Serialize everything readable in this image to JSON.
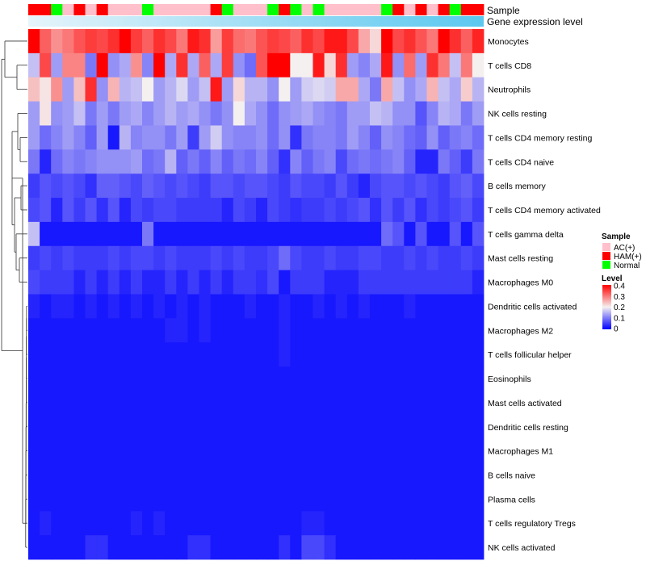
{
  "chart_data": {
    "type": "heatmap",
    "title": "",
    "xlabel": "",
    "ylabel": "",
    "annotations": {
      "sample_label": "Sample",
      "expression_label": "Gene expression level",
      "sample_groups": [
        "AC(+)",
        "HAM(+)",
        "Normal"
      ],
      "sample_colors": {
        "AC(+)": "#ffc0cb",
        "HAM(+)": "#ff0000",
        "Normal": "#00ff00"
      },
      "samples": [
        "HAM(+)",
        "HAM(+)",
        "Normal",
        "AC(+)",
        "HAM(+)",
        "AC(+)",
        "HAM(+)",
        "AC(+)",
        "AC(+)",
        "AC(+)",
        "Normal",
        "AC(+)",
        "AC(+)",
        "AC(+)",
        "AC(+)",
        "AC(+)",
        "HAM(+)",
        "Normal",
        "AC(+)",
        "AC(+)",
        "AC(+)",
        "Normal",
        "HAM(+)",
        "Normal",
        "AC(+)",
        "Normal",
        "AC(+)",
        "AC(+)",
        "AC(+)",
        "AC(+)",
        "AC(+)",
        "Normal",
        "HAM(+)",
        "AC(+)",
        "HAM(+)",
        "AC(+)",
        "HAM(+)",
        "Normal",
        "HAM(+)",
        "HAM(+)"
      ],
      "expression_gradient": [
        "#e6f4fb",
        "#5bc8ef"
      ]
    },
    "rows": [
      "Monocytes",
      "T cells CD8",
      "Neutrophils",
      "NK cells resting",
      "T cells CD4 memory resting",
      "T cells CD4 naive",
      "B cells memory",
      "T cells CD4 memory activated",
      "T cells gamma delta",
      "Mast cells resting",
      "Macrophages M0",
      "Dendritic cells activated",
      "Macrophages M2",
      "T cells follicular helper",
      "Eosinophils",
      "Mast cells activated",
      "Dendritic cells resting",
      "Macrophages M1",
      "B cells naive",
      "Plasma cells",
      "T cells regulatory  Tregs",
      "NK cells activated"
    ],
    "values": [
      [
        0.4,
        0.32,
        0.28,
        0.3,
        0.33,
        0.35,
        0.34,
        0.36,
        0.4,
        0.35,
        0.32,
        0.36,
        0.34,
        0.3,
        0.38,
        0.36,
        0.27,
        0.35,
        0.31,
        0.3,
        0.33,
        0.35,
        0.34,
        0.32,
        0.36,
        0.34,
        0.38,
        0.38,
        0.34,
        0.26,
        0.22,
        0.4,
        0.34,
        0.36,
        0.33,
        0.3,
        0.4,
        0.36,
        0.32,
        0.37
      ],
      [
        0.16,
        0.34,
        0.13,
        0.29,
        0.29,
        0.1,
        0.4,
        0.12,
        0.14,
        0.28,
        0.11,
        0.4,
        0.14,
        0.36,
        0.14,
        0.32,
        0.14,
        0.35,
        0.12,
        0.09,
        0.33,
        0.4,
        0.4,
        0.2,
        0.2,
        0.38,
        0.22,
        0.36,
        0.13,
        0.11,
        0.14,
        0.38,
        0.12,
        0.31,
        0.13,
        0.36,
        0.3,
        0.16,
        0.3,
        0.2
      ],
      [
        0.24,
        0.21,
        0.28,
        0.13,
        0.24,
        0.36,
        0.12,
        0.25,
        0.15,
        0.16,
        0.2,
        0.13,
        0.15,
        0.18,
        0.13,
        0.16,
        0.38,
        0.13,
        0.22,
        0.15,
        0.15,
        0.12,
        0.2,
        0.13,
        0.17,
        0.18,
        0.17,
        0.26,
        0.26,
        0.14,
        0.1,
        0.26,
        0.16,
        0.12,
        0.14,
        0.25,
        0.16,
        0.14,
        0.23,
        0.15
      ],
      [
        0.13,
        0.21,
        0.12,
        0.13,
        0.16,
        0.1,
        0.13,
        0.1,
        0.13,
        0.14,
        0.11,
        0.13,
        0.15,
        0.13,
        0.14,
        0.12,
        0.1,
        0.12,
        0.2,
        0.14,
        0.12,
        0.09,
        0.12,
        0.13,
        0.14,
        0.12,
        0.11,
        0.1,
        0.13,
        0.13,
        0.16,
        0.15,
        0.12,
        0.12,
        0.07,
        0.11,
        0.15,
        0.14,
        0.1,
        0.13
      ],
      [
        0.13,
        0.09,
        0.11,
        0.13,
        0.11,
        0.08,
        0.13,
        0.02,
        0.15,
        0.11,
        0.12,
        0.12,
        0.1,
        0.13,
        0.05,
        0.13,
        0.17,
        0.12,
        0.11,
        0.11,
        0.12,
        0.09,
        0.12,
        0.04,
        0.1,
        0.11,
        0.11,
        0.1,
        0.13,
        0.11,
        0.08,
        0.12,
        0.11,
        0.09,
        0.08,
        0.12,
        0.08,
        0.1,
        0.11,
        0.09
      ],
      [
        0.1,
        0.03,
        0.09,
        0.11,
        0.1,
        0.11,
        0.12,
        0.12,
        0.12,
        0.13,
        0.09,
        0.1,
        0.15,
        0.08,
        0.1,
        0.08,
        0.11,
        0.08,
        0.1,
        0.09,
        0.11,
        0.08,
        0.04,
        0.11,
        0.08,
        0.1,
        0.11,
        0.06,
        0.09,
        0.1,
        0.09,
        0.1,
        0.11,
        0.08,
        0.03,
        0.03,
        0.1,
        0.08,
        0.05,
        0.1
      ],
      [
        0.05,
        0.07,
        0.06,
        0.07,
        0.06,
        0.04,
        0.08,
        0.08,
        0.07,
        0.06,
        0.08,
        0.07,
        0.06,
        0.07,
        0.06,
        0.05,
        0.07,
        0.07,
        0.06,
        0.07,
        0.07,
        0.06,
        0.05,
        0.07,
        0.06,
        0.06,
        0.05,
        0.07,
        0.05,
        0.03,
        0.06,
        0.07,
        0.07,
        0.06,
        0.07,
        0.06,
        0.05,
        0.07,
        0.08,
        0.06
      ],
      [
        0.06,
        0.07,
        0.03,
        0.07,
        0.05,
        0.07,
        0.04,
        0.07,
        0.03,
        0.06,
        0.05,
        0.06,
        0.06,
        0.05,
        0.05,
        0.05,
        0.05,
        0.03,
        0.06,
        0.05,
        0.03,
        0.06,
        0.05,
        0.04,
        0.05,
        0.05,
        0.06,
        0.05,
        0.06,
        0.07,
        0.04,
        0.07,
        0.05,
        0.07,
        0.04,
        0.06,
        0.05,
        0.06,
        0.07,
        0.05
      ],
      [
        0.16,
        0.02,
        0.02,
        0.02,
        0.02,
        0.02,
        0.02,
        0.02,
        0.02,
        0.02,
        0.1,
        0.02,
        0.02,
        0.02,
        0.02,
        0.02,
        0.02,
        0.02,
        0.02,
        0.02,
        0.02,
        0.02,
        0.02,
        0.02,
        0.02,
        0.02,
        0.02,
        0.02,
        0.02,
        0.02,
        0.02,
        0.09,
        0.07,
        0.02,
        0.07,
        0.02,
        0.02,
        0.07,
        0.02,
        0.07
      ],
      [
        0.05,
        0.06,
        0.05,
        0.06,
        0.05,
        0.05,
        0.05,
        0.06,
        0.05,
        0.06,
        0.06,
        0.05,
        0.06,
        0.05,
        0.05,
        0.05,
        0.06,
        0.05,
        0.06,
        0.05,
        0.05,
        0.06,
        0.09,
        0.06,
        0.05,
        0.05,
        0.06,
        0.05,
        0.05,
        0.06,
        0.06,
        0.05,
        0.05,
        0.06,
        0.05,
        0.06,
        0.05,
        0.05,
        0.06,
        0.05
      ],
      [
        0.06,
        0.05,
        0.05,
        0.05,
        0.03,
        0.05,
        0.03,
        0.05,
        0.03,
        0.05,
        0.03,
        0.03,
        0.05,
        0.03,
        0.05,
        0.03,
        0.05,
        0.03,
        0.05,
        0.05,
        0.04,
        0.06,
        0.02,
        0.05,
        0.05,
        0.05,
        0.03,
        0.03,
        0.03,
        0.05,
        0.05,
        0.05,
        0.05,
        0.05,
        0.05,
        0.05,
        0.05,
        0.05,
        0.05,
        0.03
      ],
      [
        0.03,
        0.02,
        0.03,
        0.03,
        0.02,
        0.03,
        0.02,
        0.03,
        0.02,
        0.03,
        0.02,
        0.03,
        0.02,
        0.03,
        0.02,
        0.03,
        0.02,
        0.02,
        0.02,
        0.03,
        0.02,
        0.02,
        0.03,
        0.02,
        0.02,
        0.03,
        0.02,
        0.03,
        0.02,
        0.03,
        0.02,
        0.02,
        0.02,
        0.03,
        0.02,
        0.02,
        0.02,
        0.02,
        0.02,
        0.02
      ],
      [
        0.02,
        0.02,
        0.02,
        0.02,
        0.02,
        0.02,
        0.02,
        0.02,
        0.02,
        0.02,
        0.02,
        0.02,
        0.03,
        0.03,
        0.02,
        0.03,
        0.02,
        0.02,
        0.02,
        0.02,
        0.02,
        0.02,
        0.03,
        0.02,
        0.02,
        0.02,
        0.02,
        0.02,
        0.02,
        0.02,
        0.02,
        0.02,
        0.02,
        0.02,
        0.02,
        0.02,
        0.02,
        0.02,
        0.02,
        0.02
      ],
      [
        0.02,
        0.02,
        0.02,
        0.02,
        0.02,
        0.02,
        0.02,
        0.02,
        0.02,
        0.02,
        0.02,
        0.02,
        0.02,
        0.02,
        0.02,
        0.02,
        0.02,
        0.02,
        0.02,
        0.02,
        0.02,
        0.02,
        0.03,
        0.02,
        0.02,
        0.02,
        0.02,
        0.02,
        0.02,
        0.02,
        0.02,
        0.02,
        0.02,
        0.02,
        0.02,
        0.02,
        0.02,
        0.02,
        0.02,
        0.02
      ],
      [
        0.02,
        0.02,
        0.02,
        0.02,
        0.02,
        0.02,
        0.02,
        0.02,
        0.02,
        0.02,
        0.02,
        0.02,
        0.02,
        0.02,
        0.02,
        0.02,
        0.02,
        0.02,
        0.02,
        0.02,
        0.02,
        0.02,
        0.02,
        0.02,
        0.02,
        0.02,
        0.02,
        0.02,
        0.02,
        0.02,
        0.02,
        0.02,
        0.02,
        0.02,
        0.02,
        0.02,
        0.02,
        0.02,
        0.02,
        0.02
      ],
      [
        0.02,
        0.02,
        0.02,
        0.02,
        0.02,
        0.02,
        0.02,
        0.02,
        0.02,
        0.02,
        0.02,
        0.02,
        0.02,
        0.02,
        0.02,
        0.02,
        0.02,
        0.02,
        0.02,
        0.02,
        0.02,
        0.02,
        0.02,
        0.02,
        0.02,
        0.02,
        0.02,
        0.02,
        0.02,
        0.02,
        0.02,
        0.02,
        0.02,
        0.02,
        0.02,
        0.02,
        0.02,
        0.02,
        0.02,
        0.02
      ],
      [
        0.02,
        0.02,
        0.02,
        0.02,
        0.02,
        0.02,
        0.02,
        0.02,
        0.02,
        0.02,
        0.02,
        0.02,
        0.02,
        0.02,
        0.02,
        0.02,
        0.02,
        0.02,
        0.02,
        0.02,
        0.02,
        0.02,
        0.02,
        0.02,
        0.02,
        0.02,
        0.02,
        0.02,
        0.02,
        0.02,
        0.02,
        0.02,
        0.02,
        0.02,
        0.02,
        0.02,
        0.02,
        0.02,
        0.02,
        0.02
      ],
      [
        0.02,
        0.02,
        0.02,
        0.02,
        0.02,
        0.02,
        0.02,
        0.02,
        0.02,
        0.02,
        0.02,
        0.02,
        0.02,
        0.02,
        0.02,
        0.02,
        0.02,
        0.02,
        0.02,
        0.02,
        0.02,
        0.02,
        0.02,
        0.02,
        0.02,
        0.02,
        0.02,
        0.02,
        0.02,
        0.02,
        0.02,
        0.02,
        0.02,
        0.02,
        0.02,
        0.02,
        0.02,
        0.02,
        0.02,
        0.02
      ],
      [
        0.02,
        0.02,
        0.02,
        0.02,
        0.02,
        0.02,
        0.02,
        0.02,
        0.02,
        0.02,
        0.02,
        0.02,
        0.02,
        0.02,
        0.02,
        0.02,
        0.02,
        0.02,
        0.02,
        0.02,
        0.02,
        0.02,
        0.02,
        0.02,
        0.02,
        0.02,
        0.02,
        0.02,
        0.02,
        0.02,
        0.02,
        0.02,
        0.02,
        0.02,
        0.02,
        0.02,
        0.02,
        0.02,
        0.02,
        0.02
      ],
      [
        0.02,
        0.02,
        0.02,
        0.02,
        0.02,
        0.02,
        0.02,
        0.02,
        0.02,
        0.02,
        0.02,
        0.02,
        0.02,
        0.02,
        0.02,
        0.02,
        0.02,
        0.02,
        0.02,
        0.02,
        0.02,
        0.02,
        0.02,
        0.02,
        0.02,
        0.02,
        0.02,
        0.02,
        0.02,
        0.02,
        0.02,
        0.02,
        0.02,
        0.02,
        0.02,
        0.02,
        0.02,
        0.02,
        0.02,
        0.02
      ],
      [
        0.02,
        0.03,
        0.02,
        0.02,
        0.02,
        0.02,
        0.02,
        0.02,
        0.02,
        0.03,
        0.02,
        0.03,
        0.02,
        0.02,
        0.02,
        0.02,
        0.02,
        0.02,
        0.02,
        0.02,
        0.02,
        0.02,
        0.02,
        0.02,
        0.03,
        0.03,
        0.02,
        0.02,
        0.02,
        0.02,
        0.02,
        0.02,
        0.02,
        0.02,
        0.02,
        0.02,
        0.02,
        0.02,
        0.02,
        0.02
      ],
      [
        0.02,
        0.02,
        0.02,
        0.02,
        0.02,
        0.04,
        0.04,
        0.02,
        0.02,
        0.02,
        0.02,
        0.02,
        0.02,
        0.02,
        0.04,
        0.04,
        0.02,
        0.02,
        0.02,
        0.02,
        0.02,
        0.02,
        0.04,
        0.02,
        0.06,
        0.06,
        0.04,
        0.02,
        0.02,
        0.02,
        0.02,
        0.02,
        0.02,
        0.02,
        0.02,
        0.02,
        0.02,
        0.02,
        0.02,
        0.02
      ]
    ],
    "color_scale": {
      "low": "#0000ff",
      "mid": "#f5f0f0",
      "high": "#ff0000",
      "min": 0,
      "mid_value": 0.2,
      "max": 0.4
    },
    "legend": {
      "sample_title": "Sample",
      "level_title": "Level",
      "level_ticks": [
        "0.4",
        "0.3",
        "0.2",
        "0.1",
        "0"
      ],
      "position": "right"
    }
  }
}
